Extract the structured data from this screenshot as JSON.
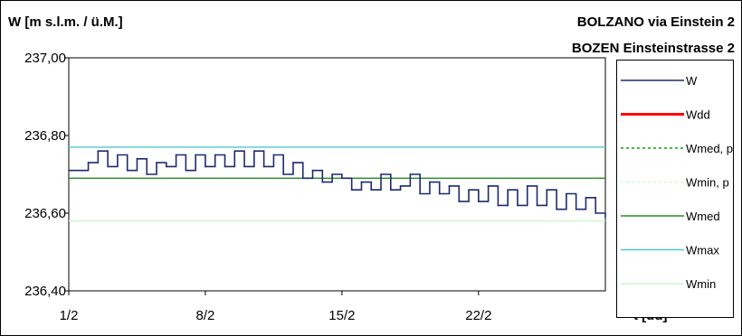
{
  "chart_data": {
    "type": "line",
    "ylabel": "W [m s.l.m. / ü.M.]",
    "xlabel": "t [dd]",
    "title": "BOLZANO via Einstein 2",
    "subtitle": "BOZEN Einsteinstrasse 2",
    "ylim": [
      236.4,
      237.0
    ],
    "yticks": [
      "236,40",
      "236,60",
      "236,80",
      "237,00"
    ],
    "ytick_values": [
      236.4,
      236.6,
      236.8,
      237.0
    ],
    "xlim": [
      1,
      28.5
    ],
    "xticks": [
      "1/2",
      "8/2",
      "15/2",
      "22/2"
    ],
    "xtick_values": [
      1,
      8,
      15,
      22
    ],
    "grid": false,
    "legend_placement": "right",
    "series": [
      {
        "name": "W",
        "color": "#1f2a6e",
        "x": [
          1.0,
          1.5,
          2.0,
          2.5,
          3.0,
          3.5,
          4.0,
          4.5,
          5.0,
          5.5,
          6.0,
          6.5,
          7.0,
          7.5,
          8.0,
          8.5,
          9.0,
          9.5,
          10.0,
          10.5,
          11.0,
          11.5,
          12.0,
          12.5,
          13.0,
          13.5,
          14.0,
          14.5,
          15.0,
          15.5,
          16.0,
          16.5,
          17.0,
          17.5,
          18.0,
          18.5,
          19.0,
          19.5,
          20.0,
          20.5,
          21.0,
          21.5,
          22.0,
          22.5,
          23.0,
          23.5,
          24.0,
          24.5,
          25.0,
          25.5,
          26.0,
          26.5,
          27.0,
          27.5,
          28.0,
          28.5
        ],
        "values": [
          236.71,
          236.71,
          236.73,
          236.76,
          236.72,
          236.75,
          236.71,
          236.74,
          236.7,
          236.73,
          236.72,
          236.75,
          236.71,
          236.75,
          236.72,
          236.75,
          236.72,
          236.76,
          236.72,
          236.76,
          236.72,
          236.75,
          236.7,
          236.73,
          236.69,
          236.71,
          236.68,
          236.7,
          236.69,
          236.66,
          236.68,
          236.66,
          236.7,
          236.66,
          236.67,
          236.7,
          236.65,
          236.68,
          236.65,
          236.67,
          236.63,
          236.66,
          236.63,
          236.67,
          236.62,
          236.66,
          236.62,
          236.67,
          236.62,
          236.66,
          236.61,
          236.65,
          236.61,
          236.64,
          236.6,
          236.59
        ]
      },
      {
        "name": "Wdd",
        "color": "#ff0000",
        "x": [],
        "values": []
      },
      {
        "name": "Wmed, p",
        "color": "#00aa00",
        "x": [],
        "values": []
      },
      {
        "name": "Wmin, p",
        "color": "#ccffcc",
        "x": [],
        "values": []
      },
      {
        "name": "Wmed",
        "color": "#228b22",
        "x": [
          1,
          28.5
        ],
        "values": [
          236.69,
          236.69
        ]
      },
      {
        "name": "Wmax",
        "color": "#4dc9d1",
        "x": [
          1,
          28.5
        ],
        "values": [
          236.77,
          236.77
        ]
      },
      {
        "name": "Wmin",
        "color": "#ccf5cc",
        "x": [
          1,
          28.5
        ],
        "values": [
          236.58,
          236.58
        ]
      }
    ]
  }
}
